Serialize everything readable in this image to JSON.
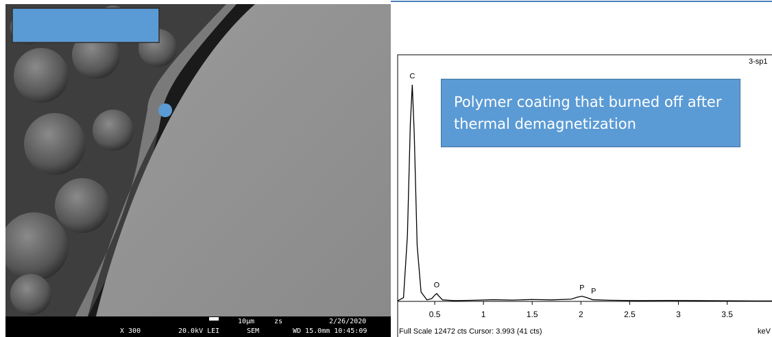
{
  "sem_image": {
    "magnification": "X 300",
    "voltage": "20.0kV LEI",
    "mode": "SEM",
    "scale_bar": "10µm",
    "tag": "zs",
    "date": "2/26/2020",
    "time": "WD 15.0mm 10:45:09"
  },
  "callout": "Polymer coating that burned off after thermal demagnetization",
  "chart_data": {
    "type": "line",
    "label": "3-sp1",
    "x_label": "keV",
    "footer": "Full Scale 12472 cts Cursor: 3.993 (41 cts)",
    "x": [
      0.12,
      0.18,
      0.22,
      0.25,
      0.27,
      0.29,
      0.32,
      0.36,
      0.42,
      0.47,
      0.5,
      0.52,
      0.54,
      0.58,
      0.7,
      0.9,
      1.1,
      1.3,
      1.5,
      1.7,
      1.9,
      1.96,
      2.01,
      2.06,
      2.12,
      2.3,
      2.6,
      2.9,
      3.2,
      3.5,
      3.8,
      3.96
    ],
    "values": [
      30,
      200,
      3500,
      9500,
      11600,
      9000,
      3000,
      500,
      80,
      150,
      330,
      420,
      300,
      80,
      40,
      60,
      90,
      70,
      100,
      80,
      120,
      220,
      280,
      200,
      90,
      60,
      40,
      50,
      40,
      30,
      20,
      20
    ],
    "color": "#000000",
    "xlim": [
      0.12,
      3.96
    ],
    "xticks": [
      0.5,
      1,
      1.5,
      2,
      2.5,
      3,
      3.5
    ],
    "ylim": [
      0,
      12472
    ],
    "annotations": [
      {
        "text": "C",
        "x": 0.27,
        "y": 11600
      },
      {
        "text": "O",
        "x": 0.52,
        "y": 420
      },
      {
        "text": "P",
        "x": 2.01,
        "y": 280
      },
      {
        "text": "P",
        "x": 2.13,
        "y": 90
      }
    ]
  }
}
